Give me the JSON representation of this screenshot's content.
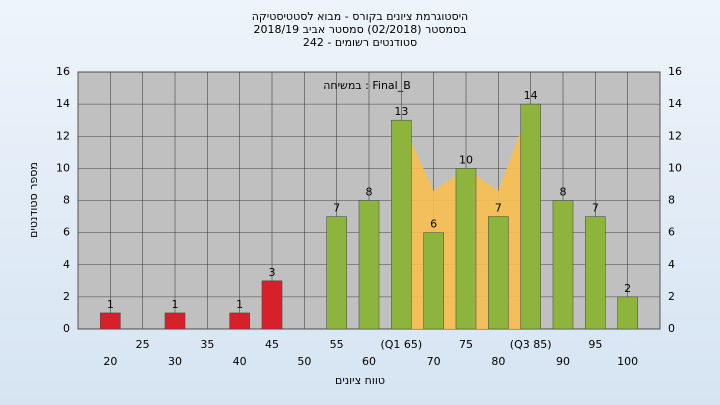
{
  "chart_data": {
    "type": "bar",
    "title": "היסטוגרמת ציונים בקורס - מבוא לסטטיסטיקה",
    "subtitle": "בסמסטר (02/2018) סמסטר אביב 2018/19",
    "subtitle2": "סטודנטים רשומים - 242",
    "annotation": "במשיחה : Final_B",
    "x_label": "טווח ציונים",
    "y_label": "מספר סטודנטים",
    "x": [
      20,
      30,
      40,
      45,
      55,
      60,
      65,
      70,
      75,
      80,
      85,
      90,
      95,
      100
    ],
    "values": [
      1,
      1,
      1,
      3,
      7,
      8,
      13,
      6,
      10,
      7,
      14,
      8,
      7,
      2
    ],
    "colors": [
      "#d8202a",
      "#d8202a",
      "#d8202a",
      "#d8202a",
      "#8db43c",
      "#8db43c",
      "#8db43c",
      "#8db43c",
      "#8db43c",
      "#8db43c",
      "#8db43c",
      "#8db43c",
      "#8db43c",
      "#8db43c"
    ],
    "band": {
      "color": "#f7bf4f",
      "x": [
        65,
        70,
        75,
        80,
        85
      ],
      "values": [
        13,
        8.6,
        10,
        8.6,
        14
      ]
    },
    "xlim": [
      15,
      105
    ],
    "xticks": [
      20,
      25,
      30,
      35,
      40,
      45,
      50,
      55,
      60,
      {
        "value": 65,
        "label": "(Q1 65)"
      },
      70,
      75,
      80,
      {
        "value": 85,
        "label": "(Q3 85)"
      },
      90,
      95,
      100
    ],
    "ylim": [
      0,
      16
    ],
    "yticks": [
      0,
      2,
      4,
      6,
      8,
      10,
      12,
      14,
      16
    ],
    "grid": true
  }
}
